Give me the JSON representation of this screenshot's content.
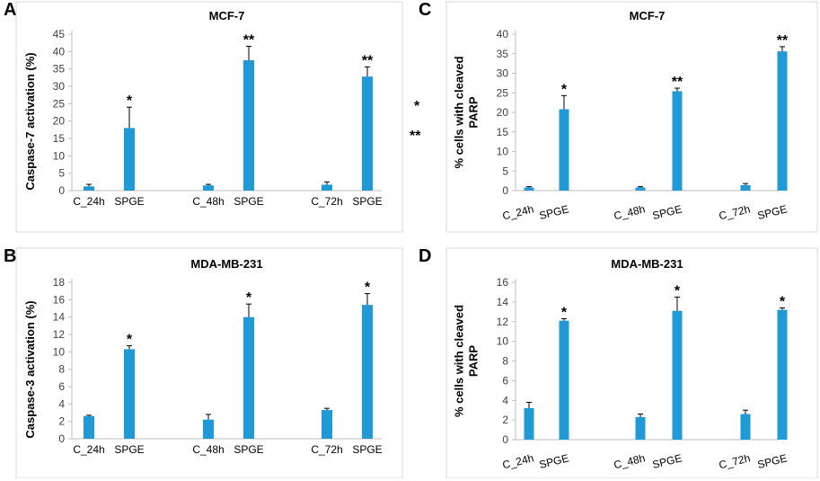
{
  "figure": {
    "stray_marks": [
      "*",
      "**"
    ]
  },
  "chart_data": [
    {
      "panel": "A",
      "type": "bar",
      "title": "MCF-7",
      "ylabel": "Caspase-7 activation (%)",
      "xlabel": "",
      "categories": [
        "C_24h",
        "SPGE",
        "C_48h",
        "SPGE",
        "C_72h",
        "SPGE"
      ],
      "values": [
        1.2,
        18,
        1.5,
        37.5,
        1.7,
        32.8
      ],
      "errors": [
        0.6,
        6,
        0.3,
        4,
        0.8,
        2.8
      ],
      "annotations": [
        "",
        "*",
        "",
        "**",
        "",
        "**"
      ],
      "ylim": [
        0,
        45
      ],
      "yticks": [
        0,
        5,
        10,
        15,
        20,
        25,
        30,
        35,
        40,
        45
      ],
      "bar_color": "#1f9ad6"
    },
    {
      "panel": "B",
      "type": "bar",
      "title": "MDA-MB-231",
      "ylabel": "Caspase-3 activation (%)",
      "xlabel": "",
      "categories": [
        "C_24h",
        "SPGE",
        "C_48h",
        "SPGE",
        "C_72h",
        "SPGE"
      ],
      "values": [
        2.6,
        10.3,
        2.2,
        14,
        3.3,
        15.4
      ],
      "errors": [
        0.1,
        0.4,
        0.6,
        1.5,
        0.2,
        1.3
      ],
      "annotations": [
        "",
        "*",
        "",
        "*",
        "",
        "*"
      ],
      "ylim": [
        0,
        18
      ],
      "yticks": [
        0,
        2,
        4,
        6,
        8,
        10,
        12,
        14,
        16,
        18
      ],
      "bar_color": "#1f9ad6"
    },
    {
      "panel": "C",
      "type": "bar",
      "title": "MCF-7",
      "ylabel": "% cells with cleaved PARP",
      "ylabel_lines": [
        "% cells with cleaved",
        "PARP"
      ],
      "xlabel": "",
      "categories": [
        "C_24h",
        "SPGE",
        "C_48h",
        "SPGE",
        "C_72h",
        "SPGE"
      ],
      "values": [
        0.8,
        20.8,
        0.8,
        25.4,
        1.4,
        35.6
      ],
      "errors": [
        0.2,
        3.5,
        0.2,
        0.8,
        0.4,
        1.2
      ],
      "annotations": [
        "",
        "*",
        "",
        "**",
        "",
        "**"
      ],
      "ylim": [
        0,
        40
      ],
      "yticks": [
        0,
        5,
        10,
        15,
        20,
        25,
        30,
        35,
        40
      ],
      "bar_color": "#1f9ad6"
    },
    {
      "panel": "D",
      "type": "bar",
      "title": "MDA-MB-231",
      "ylabel": "% cells with cleaved PARP",
      "ylabel_lines": [
        "% cells with cleaved",
        "PARP"
      ],
      "xlabel": "",
      "categories": [
        "C_24h",
        "SPGE",
        "C_48h",
        "SPGE",
        "C_72h",
        "SPGE"
      ],
      "values": [
        3.2,
        12.1,
        2.3,
        13.1,
        2.6,
        13.2
      ],
      "errors": [
        0.6,
        0.2,
        0.3,
        1.4,
        0.4,
        0.2
      ],
      "annotations": [
        "",
        "*",
        "",
        "*",
        "",
        "*"
      ],
      "ylim": [
        0,
        16
      ],
      "yticks": [
        0,
        2,
        4,
        6,
        8,
        10,
        12,
        14,
        16
      ],
      "bar_color": "#1f9ad6"
    }
  ]
}
